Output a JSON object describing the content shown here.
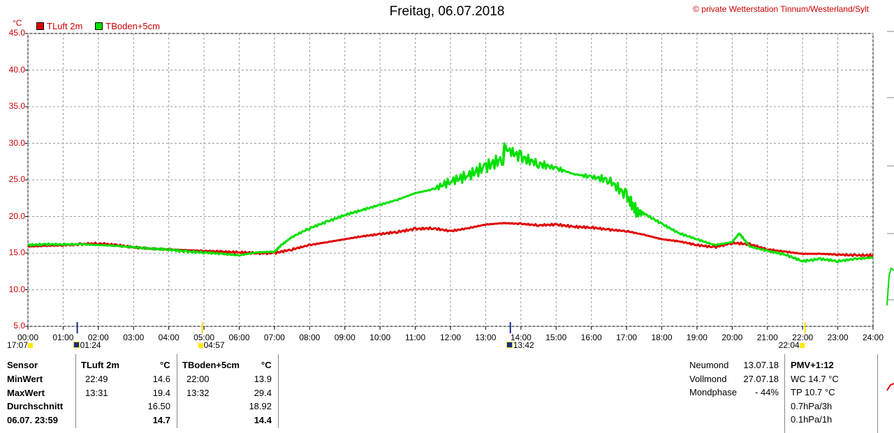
{
  "header": {
    "title": "Freitag, 06.07.2018",
    "copyright": "© private Wetterstation Tinnum/Westerland/Sylt"
  },
  "colors": {
    "tluft": "#e00000",
    "tboden": "#00e000",
    "axis_text": "#cc0000"
  },
  "chart_data": {
    "type": "line",
    "ylabel": "°C",
    "ylim": [
      5,
      45
    ],
    "yticks": [
      "5.0",
      "10.0",
      "15.0",
      "20.0",
      "25.0",
      "30.0",
      "35.0",
      "40.0",
      "45.0"
    ],
    "xlim": [
      0,
      24
    ],
    "xticks": [
      "00:00",
      "01:00",
      "02:00",
      "03:00",
      "04:00",
      "05:00",
      "06:00",
      "07:00",
      "08:00",
      "09:00",
      "10:00",
      "11:00",
      "12:00",
      "13:00",
      "14:00",
      "15:00",
      "16:00",
      "17:00",
      "18:00",
      "19:00",
      "20:00",
      "21:00",
      "22:00",
      "23:00",
      "24:00"
    ],
    "grid": true,
    "legend": "top-left",
    "series": [
      {
        "name": "TLuft 2m",
        "color": "#e00000",
        "x": [
          0,
          0.5,
          1,
          1.5,
          2,
          2.5,
          3,
          3.5,
          4,
          4.5,
          5,
          5.5,
          6,
          6.5,
          7,
          7.5,
          8,
          8.5,
          9,
          9.5,
          10,
          10.5,
          11,
          11.5,
          12,
          12.5,
          13,
          13.5,
          14,
          14.5,
          15,
          15.5,
          16,
          16.5,
          17,
          17.5,
          18,
          18.5,
          19,
          19.5,
          20,
          20.5,
          21,
          21.5,
          22,
          22.5,
          23,
          23.5,
          24
        ],
        "values": [
          15.9,
          16.0,
          16.1,
          16.2,
          16.3,
          16.1,
          15.8,
          15.6,
          15.5,
          15.4,
          15.3,
          15.2,
          15.1,
          15.0,
          15.0,
          15.5,
          16.1,
          16.5,
          16.9,
          17.3,
          17.6,
          17.9,
          18.3,
          18.4,
          18.0,
          18.4,
          18.9,
          19.1,
          19.0,
          18.8,
          18.9,
          18.6,
          18.5,
          18.2,
          18.0,
          17.5,
          16.9,
          16.6,
          16.1,
          15.8,
          16.4,
          16.2,
          15.5,
          15.2,
          14.9,
          14.9,
          14.8,
          14.7,
          14.7
        ]
      },
      {
        "name": "TBoden+5cm",
        "color": "#00e000",
        "x": [
          0,
          0.5,
          1,
          1.5,
          2,
          2.5,
          3,
          3.5,
          4,
          4.5,
          5,
          5.5,
          6,
          6.5,
          7,
          7.2,
          7.5,
          8,
          8.5,
          9,
          9.5,
          10,
          10.5,
          11,
          11.5,
          12,
          12.5,
          13,
          13.5,
          13.53,
          14,
          14.5,
          15,
          15.5,
          16,
          16.5,
          17,
          17.3,
          17.5,
          18,
          18.5,
          19,
          19.5,
          20,
          20.2,
          20.5,
          21,
          21.5,
          22,
          22.5,
          23,
          23.5,
          24
        ],
        "values": [
          16.1,
          16.2,
          16.2,
          16.2,
          16.1,
          16.0,
          15.8,
          15.6,
          15.5,
          15.2,
          15.1,
          14.9,
          14.7,
          15.1,
          15.2,
          16.1,
          17.2,
          18.4,
          19.3,
          20.2,
          20.9,
          21.6,
          22.3,
          23.2,
          23.7,
          24.8,
          25.6,
          26.8,
          27.9,
          29.4,
          28.1,
          27.2,
          26.6,
          25.8,
          25.4,
          25.0,
          22.8,
          20.6,
          20.4,
          19.0,
          17.7,
          16.9,
          16.1,
          16.5,
          17.7,
          15.9,
          15.3,
          14.8,
          13.9,
          14.2,
          13.9,
          14.2,
          14.4
        ]
      }
    ],
    "markers": [
      {
        "label": "17:07",
        "pos": 0.0
      },
      {
        "label": "01:24",
        "pos": 1.4
      },
      {
        "label": "04:57",
        "pos": 4.95
      },
      {
        "label": "13:42",
        "pos": 13.7
      },
      {
        "label": "22:04",
        "pos": 22.07
      }
    ]
  },
  "legend": {
    "tluft": "TLuft 2m",
    "tboden": "TBoden+5cm"
  },
  "table": {
    "col_sensor": "Sensor",
    "col_tluft": "TLuft 2m",
    "col_tluft_unit": "°C",
    "col_tboden": "TBoden+5cm",
    "col_tboden_unit": "°C",
    "rows": [
      {
        "label": "MinWert",
        "t1_time": "22:49",
        "t1_val": "14.6",
        "t2_time": "22:00",
        "t2_val": "13.9"
      },
      {
        "label": "MaxWert",
        "t1_time": "13:31",
        "t1_val": "19.4",
        "t2_time": "13:32",
        "t2_val": "29.4"
      },
      {
        "label": "Durchschnitt",
        "t1_time": "",
        "t1_val": "16.50",
        "t2_time": "",
        "t2_val": "18.92"
      },
      {
        "label": "06.07. 23:59",
        "t1_time": "",
        "t1_val": "14.7",
        "t2_time": "",
        "t2_val": "14.4"
      }
    ],
    "moon": [
      {
        "label": "Neumond",
        "value": "13.07.18"
      },
      {
        "label": "Vollmond",
        "value": "27.07.18"
      },
      {
        "label": "Mondphase",
        "value": "- 44%"
      }
    ],
    "pmv": [
      "PMV+1:12",
      "WC 14.7 °C",
      "TP 10.7 °C",
      "0.7hPa/3h",
      "0.1hPa/1h"
    ]
  }
}
